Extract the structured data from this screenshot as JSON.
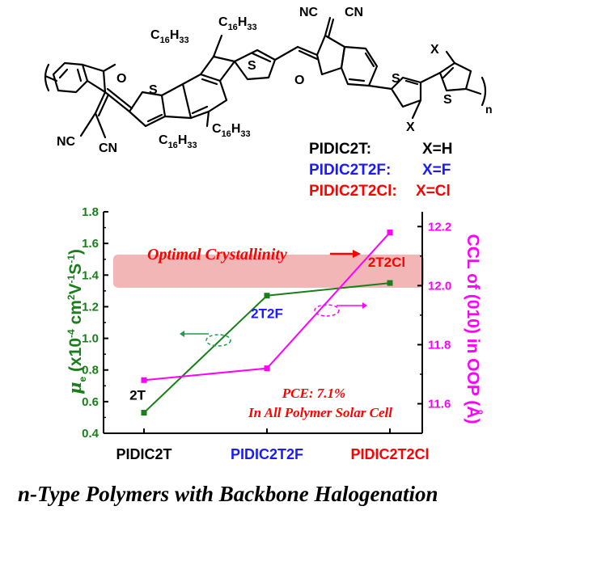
{
  "structure": {
    "atoms": {
      "o_left": "O",
      "s_left_thiophene": "S",
      "s_right_thiophene": "S",
      "o_right": "O",
      "s_bithiophene_a": "S",
      "s_bithiophene_b": "S",
      "cn_1": "CN",
      "cn_2": "CN",
      "nc_1": "NC",
      "nc_2": "NC",
      "x_top": "X",
      "x_bottom": "X",
      "n_subscript": "n"
    },
    "alkyl_chains": [
      {
        "c": "C",
        "sub_a": "16",
        "h": "H",
        "sub_b": "33"
      },
      {
        "c": "C",
        "sub_a": "16",
        "h": "H",
        "sub_b": "33"
      },
      {
        "c": "C",
        "sub_a": "16",
        "h": "H",
        "sub_b": "33"
      },
      {
        "c": "C",
        "sub_a": "16",
        "h": "H",
        "sub_b": "33"
      }
    ],
    "legend": [
      {
        "name": "PIDIC2T:",
        "x": "X=H",
        "color": "#000000"
      },
      {
        "name": "PIDIC2T2F:",
        "x": "X=F",
        "color": "#1a1aff"
      },
      {
        "name": "PIDIC2T2Cl:",
        "x": "X=Cl",
        "color": "#ff0000"
      }
    ]
  },
  "chart_data": {
    "type": "line",
    "categories": [
      "PIDIC2T",
      "PIDIC2T2F",
      "PIDIC2T2Cl"
    ],
    "category_colors": [
      "#000000",
      "#1a1aff",
      "#ff0000"
    ],
    "series": [
      {
        "axis": "left",
        "color": "#1a7f1a",
        "values": [
          0.53,
          1.27,
          1.35
        ],
        "point_labels": [
          "2T",
          "2T2F",
          "2T2Cl"
        ],
        "point_label_colors": [
          "#000000",
          "#1a1aff",
          "#ff0000"
        ]
      },
      {
        "axis": "right",
        "color": "#ff00ff",
        "values": [
          11.68,
          11.72,
          12.18
        ]
      }
    ],
    "y_left": {
      "ylim": [
        0.4,
        1.8
      ],
      "ticks": [
        "0.4",
        "0.6",
        "0.8",
        "1.0",
        "1.2",
        "1.4",
        "1.6",
        "1.8"
      ],
      "label": {
        "mu": "μ",
        "sub_e": "e",
        "rest1": " (x10",
        "sup_m4": "-4",
        "rest2": " cm",
        "sup_2": "2",
        "rest3": "V",
        "sup_m1a": "-1",
        "rest4": "S",
        "sup_m1b": "-1",
        "rest5": ")"
      },
      "color": "#1a7f1a"
    },
    "y_right": {
      "ylim": [
        11.5,
        12.25
      ],
      "ticks": [
        "11.6",
        "11.8",
        "12.0",
        "12.2"
      ],
      "label": "CCL of (010) in OOP (Å)",
      "color": "#ff00ff"
    },
    "highlight_band": {
      "text": "Optimal Crystallinity",
      "color": "#f2b6b6",
      "y_from": 1.32,
      "y_to": 1.53
    },
    "annotation": {
      "line1": "PCE: 7.1%",
      "line2": "In All Polymer Solar Cell",
      "color": "#ff0000"
    },
    "grid": false
  },
  "caption": "n-Type Polymers with Backbone Halogenation"
}
